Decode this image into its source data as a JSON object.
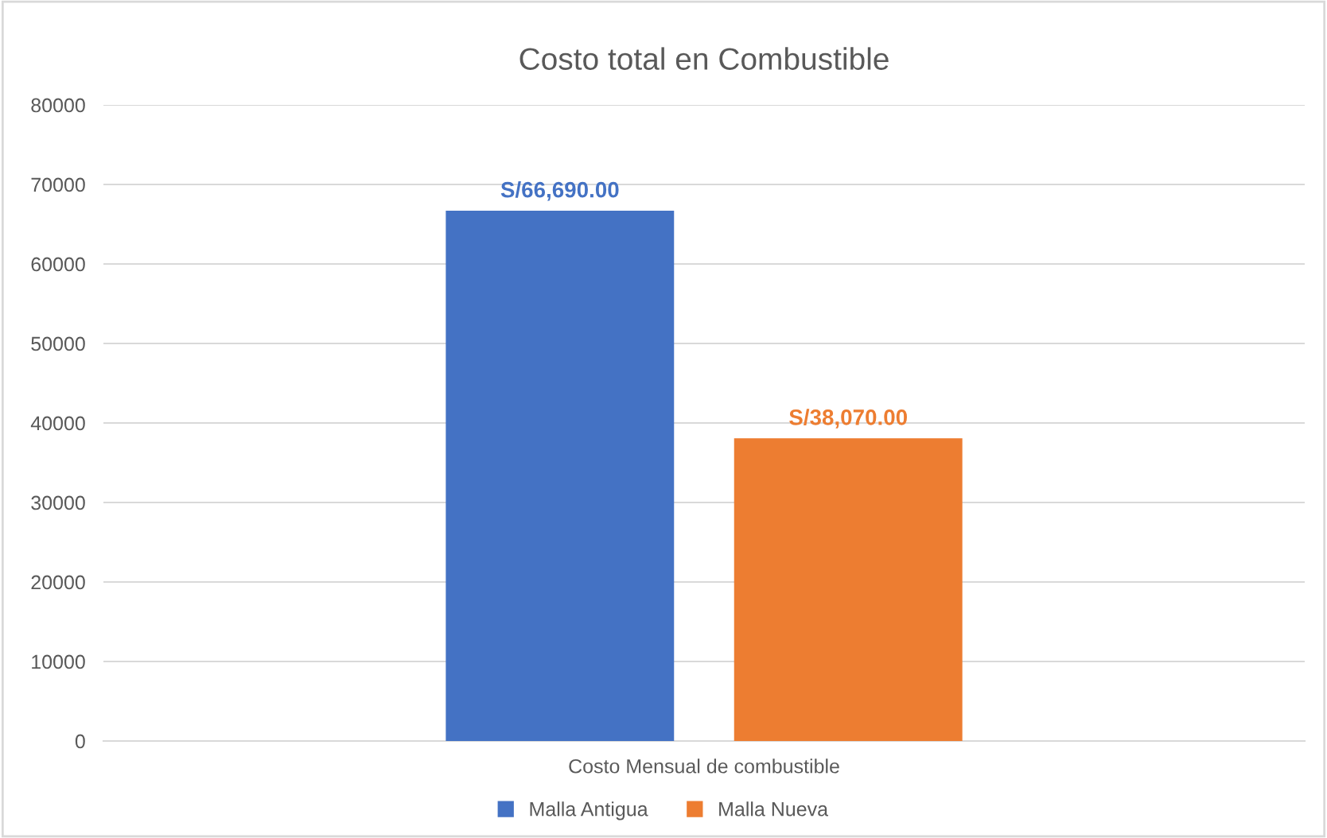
{
  "chart_data": {
    "type": "bar",
    "title": "Costo total en Combustible",
    "categories": [
      "Costo Mensual de combustible"
    ],
    "series": [
      {
        "name": "Malla Antigua",
        "color": "#4472c4",
        "values": [
          66690
        ],
        "value_labels": [
          "S/66,690.00"
        ]
      },
      {
        "name": "Malla Nueva",
        "color": "#ed7d31",
        "values": [
          38070
        ],
        "value_labels": [
          "S/38,070.00"
        ]
      }
    ],
    "ylim": [
      0,
      80000
    ],
    "yticks": [
      0,
      10000,
      20000,
      30000,
      40000,
      50000,
      60000,
      70000,
      80000
    ],
    "grid": "y",
    "legend": "bottom"
  }
}
